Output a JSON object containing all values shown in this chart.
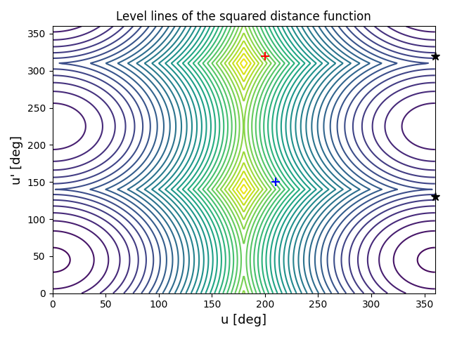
{
  "title": "Level lines of the squared distance function",
  "xlabel": "u [deg]",
  "ylabel": "u' [deg]",
  "xlim": [
    0,
    360
  ],
  "ylim": [
    0,
    360
  ],
  "red_marker_x": 200,
  "red_marker_y": 320,
  "blue_marker_x": 210,
  "blue_marker_y": 150,
  "star1_x": 360,
  "star1_y": 320,
  "star2_x": 360,
  "star2_y": 130,
  "n_contours": 40,
  "colormap": "viridis"
}
